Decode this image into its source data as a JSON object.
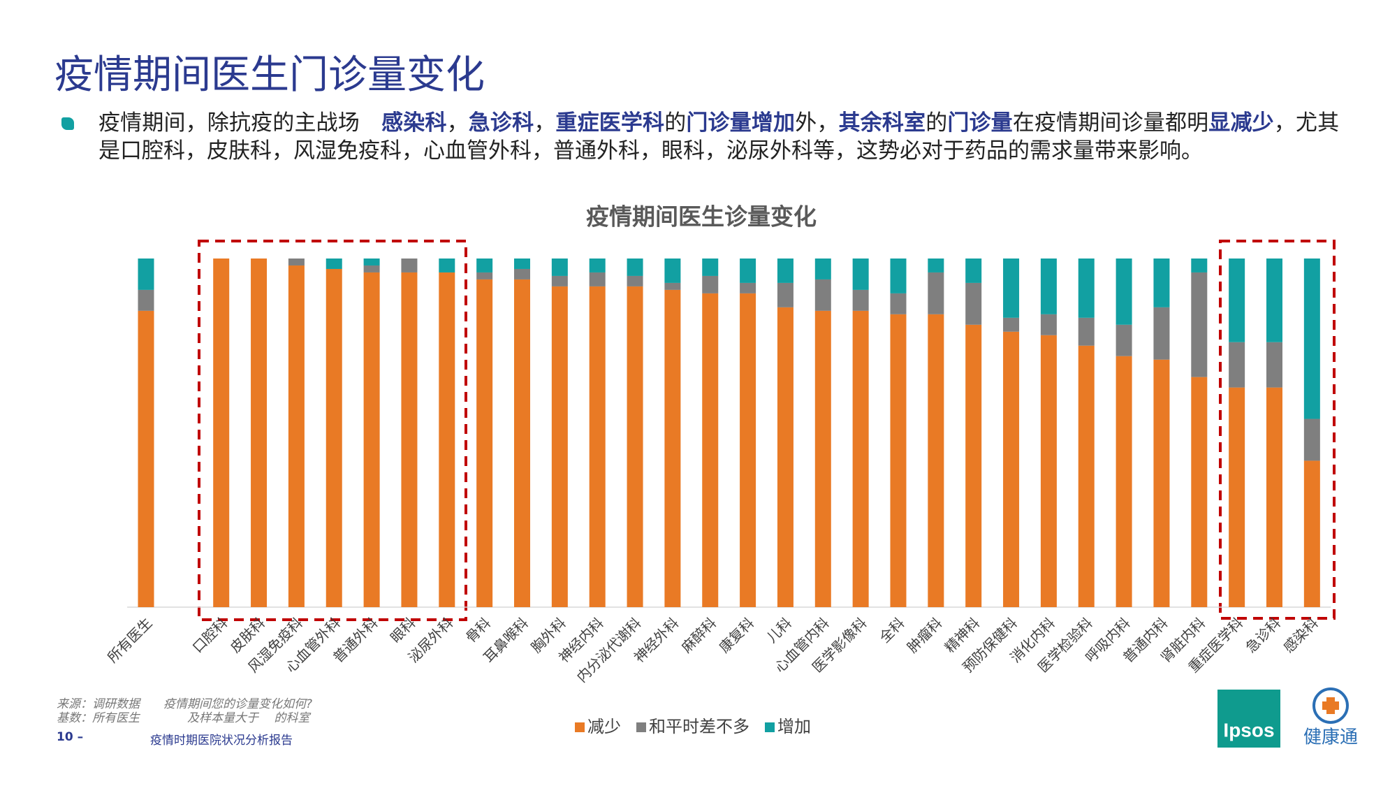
{
  "header": {
    "title": "疫情期间医生门诊量变化"
  },
  "bullet": [
    {
      "text": "疫情期间，除抗疫的主战场　",
      "em": false
    },
    {
      "text": "感染科",
      "em": true
    },
    {
      "text": "，",
      "em": false
    },
    {
      "text": "急诊科",
      "em": true
    },
    {
      "text": "，",
      "em": false
    },
    {
      "text": "重症医学科",
      "em": true
    },
    {
      "text": "的",
      "em": false
    },
    {
      "text": "门诊量增加",
      "em": true
    },
    {
      "text": "外，",
      "em": false
    },
    {
      "text": "其余科室",
      "em": true
    },
    {
      "text": "的",
      "em": false
    },
    {
      "text": "门诊量",
      "em": true
    },
    {
      "text": "在疫情期间诊量都明",
      "em": false
    },
    {
      "text": "显减少",
      "em": true
    },
    {
      "text": "，尤其是口腔科，皮肤科，风湿免疫科，心血管外科，普通外科，眼科，泌尿外科等，这势必对于药品的需求量带来影响。",
      "em": false
    }
  ],
  "chart_data": {
    "type": "bar",
    "stacked": true,
    "title": "疫情期间医生诊量变化",
    "categories": [
      "所有医生",
      null,
      "口腔科",
      "皮肤科",
      "风湿免疫科",
      "心血管外科",
      "普通外科",
      "眼科",
      "泌尿外科",
      "骨科",
      "耳鼻喉科",
      "胸外科",
      "神经内科",
      "内分泌代谢科",
      "神经外科",
      "麻醉科",
      "康复科",
      "儿科",
      "心血管内科",
      "医学影像科",
      "全科",
      "肿瘤科",
      "精神科",
      "预防保健科",
      "消化内科",
      "医学检验科",
      "呼吸内科",
      "普通内科",
      "肾脏内科",
      "重症医学科",
      "急诊科",
      "感染科"
    ],
    "series": [
      {
        "name": "减少",
        "color": "#e97a25",
        "values": [
          85,
          null,
          100,
          100,
          98,
          97,
          96,
          96,
          96,
          94,
          94,
          92,
          92,
          92,
          91,
          90,
          90,
          86,
          85,
          85,
          84,
          84,
          81,
          79,
          78,
          75,
          72,
          71,
          66,
          63,
          63,
          42
        ]
      },
      {
        "name": "和平时差不多",
        "color": "#7f7f7f",
        "values": [
          6,
          null,
          0,
          0,
          2,
          0,
          2,
          4,
          0,
          2,
          3,
          3,
          4,
          3,
          2,
          5,
          3,
          7,
          9,
          6,
          6,
          12,
          12,
          4,
          6,
          8,
          9,
          15,
          30,
          13,
          13,
          12
        ]
      },
      {
        "name": "增加",
        "color": "#12a0a2",
        "values": [
          9,
          null,
          0,
          0,
          0,
          3,
          2,
          0,
          4,
          4,
          3,
          5,
          4,
          5,
          7,
          5,
          7,
          7,
          6,
          9,
          10,
          4,
          7,
          17,
          16,
          17,
          19,
          14,
          4,
          24,
          24,
          46
        ]
      }
    ],
    "ylim": [
      0,
      100
    ],
    "legend": "bottom"
  },
  "footer": {
    "source": "来源：调研数据　　疫情期间您的诊量变化如何?",
    "base": "基数：所有医生　　　　及样本量大于　 的科室",
    "page": "10 –",
    "report": "疫情时期医院状况分析报告"
  },
  "logos": {
    "ipsos": "Ipsos",
    "jkt": "健康通"
  }
}
